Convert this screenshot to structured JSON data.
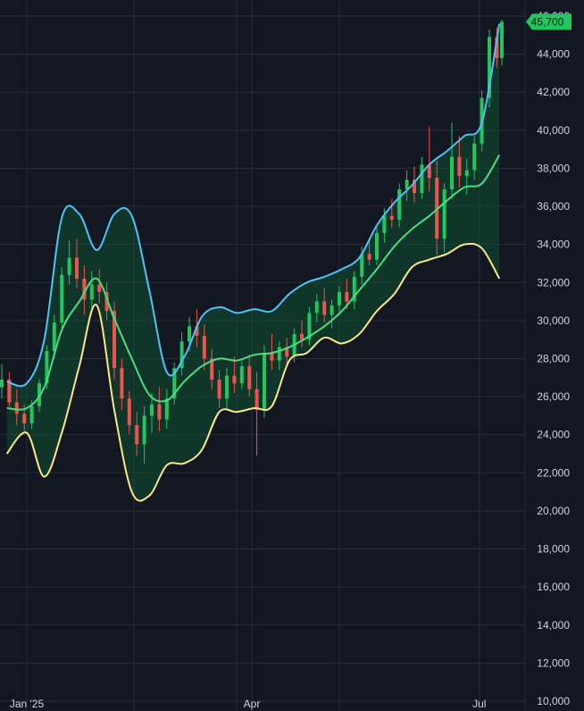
{
  "colors": {
    "background": "#131722",
    "grid": "#2a2e39",
    "up_candle": "#22c55e",
    "down_candle": "#ef5350",
    "upper_band": "#4fc3f7",
    "middle_band": "#4ade80",
    "lower_band": "#fde68a",
    "band_fill": "#0f5132",
    "price_badge": "#22c55e"
  },
  "chart_data": {
    "type": "line",
    "title": "",
    "xlabel": "",
    "ylabel": "",
    "grid": true,
    "ylim": [
      10000,
      46000
    ],
    "y_ticks": [
      "46,000",
      "44,000",
      "42,000",
      "40,000",
      "38,000",
      "36,000",
      "34,000",
      "32,000",
      "30,000",
      "28,000",
      "26,000",
      "24,000",
      "22,000",
      "20,000",
      "18,000",
      "16,000",
      "14,000",
      "12,000",
      "10,000"
    ],
    "x_ticks": [
      "Jan '25",
      "Apr",
      "Jul"
    ],
    "current_price_label": "45,700",
    "current_price": 45700,
    "series": [
      {
        "x": [
          "Dec 24",
          "Jan 1",
          "Jan 8",
          "Jan 15",
          "Jan 22",
          "Jan 29",
          "Feb 5",
          "Feb 12",
          "Feb 19",
          "Feb 26",
          "Mar 5",
          "Mar 12",
          "Mar 19",
          "Mar 26",
          "Apr 2",
          "Apr 9",
          "Apr 16",
          "Apr 23",
          "Apr 30",
          "May 7",
          "May 14",
          "May 21",
          "May 28",
          "Jun 4",
          "Jun 11",
          "Jun 18",
          "Jun 25",
          "Jul 2",
          "Jul 9"
        ],
        "values": [
          26800,
          26700,
          29000,
          35400,
          35600,
          33700,
          35600,
          35500,
          31600,
          27300,
          28100,
          30200,
          30700,
          30400,
          30600,
          30500,
          31400,
          32000,
          32300,
          32700,
          33300,
          35000,
          36200,
          37100,
          38200,
          38900,
          39700,
          40400,
          45600
        ]
      },
      {
        "x": [
          "Dec 24",
          "Jan 1",
          "Jan 8",
          "Jan 15",
          "Jan 22",
          "Jan 29",
          "Feb 5",
          "Feb 12",
          "Feb 19",
          "Feb 26",
          "Mar 5",
          "Mar 12",
          "Mar 19",
          "Mar 26",
          "Apr 2",
          "Apr 9",
          "Apr 16",
          "Apr 23",
          "Apr 30",
          "May 7",
          "May 14",
          "May 21",
          "May 28",
          "Jun 4",
          "Jun 11",
          "Jun 18",
          "Jun 25",
          "Jul 2",
          "Jul 9"
        ],
        "values": [
          25400,
          25400,
          26500,
          29500,
          31000,
          32200,
          30100,
          28000,
          26100,
          25800,
          26800,
          27600,
          28000,
          27900,
          28200,
          28300,
          28600,
          29100,
          29700,
          30500,
          31600,
          32700,
          33900,
          34800,
          35500,
          36300,
          37000,
          37200,
          38700
        ]
      },
      {
        "x": [
          "Dec 24",
          "Jan 1",
          "Jan 8",
          "Jan 15",
          "Jan 22",
          "Jan 29",
          "Feb 5",
          "Feb 12",
          "Feb 19",
          "Feb 26",
          "Mar 5",
          "Mar 12",
          "Mar 19",
          "Mar 26",
          "Apr 2",
          "Apr 9",
          "Apr 16",
          "Apr 23",
          "Apr 30",
          "May 7",
          "May 14",
          "May 21",
          "May 28",
          "Jun 4",
          "Jun 11",
          "Jun 18",
          "Jun 25",
          "Jul 2",
          "Jul 9"
        ],
        "values": [
          23000,
          24100,
          21800,
          24100,
          27600,
          30800,
          25300,
          21000,
          20800,
          22400,
          22500,
          23200,
          25200,
          25200,
          25400,
          25500,
          27900,
          28300,
          29100,
          28800,
          29300,
          30500,
          31400,
          32800,
          33200,
          33500,
          34000,
          33800,
          32200
        ]
      }
    ],
    "candles": [
      {
        "d": "Dec 22",
        "o": 26500,
        "h": 27700,
        "l": 25900,
        "c": 26900
      },
      {
        "d": "Dec 25",
        "o": 26900,
        "h": 27300,
        "l": 25500,
        "c": 25700
      },
      {
        "d": "Dec 28",
        "o": 25700,
        "h": 26400,
        "l": 24500,
        "c": 25100
      },
      {
        "d": "Dec 31",
        "o": 25100,
        "h": 25600,
        "l": 24100,
        "c": 24600
      },
      {
        "d": "Jan 3",
        "o": 24600,
        "h": 25800,
        "l": 24300,
        "c": 25500
      },
      {
        "d": "Jan 6",
        "o": 25500,
        "h": 26900,
        "l": 25200,
        "c": 26700
      },
      {
        "d": "Jan 9",
        "o": 26700,
        "h": 28700,
        "l": 26400,
        "c": 28400
      },
      {
        "d": "Jan 12",
        "o": 28400,
        "h": 30300,
        "l": 28000,
        "c": 29900
      },
      {
        "d": "Jan 15",
        "o": 29900,
        "h": 32800,
        "l": 29500,
        "c": 32400
      },
      {
        "d": "Jan 18",
        "o": 32400,
        "h": 34200,
        "l": 31900,
        "c": 33300
      },
      {
        "d": "Jan 21",
        "o": 33300,
        "h": 34300,
        "l": 31700,
        "c": 32200
      },
      {
        "d": "Jan 24",
        "o": 32200,
        "h": 32900,
        "l": 30300,
        "c": 31100
      },
      {
        "d": "Jan 27",
        "o": 31100,
        "h": 32600,
        "l": 30600,
        "c": 31900
      },
      {
        "d": "Jan 30",
        "o": 31900,
        "h": 32700,
        "l": 30900,
        "c": 31500
      },
      {
        "d": "Feb 2",
        "o": 31500,
        "h": 32000,
        "l": 30000,
        "c": 30500
      },
      {
        "d": "Feb 5",
        "o": 30500,
        "h": 31000,
        "l": 26900,
        "c": 27500
      },
      {
        "d": "Feb 8",
        "o": 27500,
        "h": 28000,
        "l": 25300,
        "c": 25900
      },
      {
        "d": "Feb 11",
        "o": 25900,
        "h": 26300,
        "l": 24000,
        "c": 24500
      },
      {
        "d": "Feb 14",
        "o": 24500,
        "h": 25200,
        "l": 22900,
        "c": 23500
      },
      {
        "d": "Feb 17",
        "o": 23500,
        "h": 25500,
        "l": 22500,
        "c": 25000
      },
      {
        "d": "Feb 20",
        "o": 25000,
        "h": 26200,
        "l": 24100,
        "c": 25600
      },
      {
        "d": "Feb 23",
        "o": 25600,
        "h": 26500,
        "l": 24200,
        "c": 24800
      },
      {
        "d": "Feb 26",
        "o": 24800,
        "h": 26400,
        "l": 24300,
        "c": 25900
      },
      {
        "d": "Mar 1",
        "o": 25900,
        "h": 27800,
        "l": 25600,
        "c": 27500
      },
      {
        "d": "Mar 4",
        "o": 27500,
        "h": 29400,
        "l": 27100,
        "c": 28900
      },
      {
        "d": "Mar 7",
        "o": 28900,
        "h": 30200,
        "l": 28400,
        "c": 29700
      },
      {
        "d": "Mar 10",
        "o": 29700,
        "h": 30600,
        "l": 28600,
        "c": 29200
      },
      {
        "d": "Mar 13",
        "o": 29200,
        "h": 29800,
        "l": 27400,
        "c": 28000
      },
      {
        "d": "Mar 16",
        "o": 28000,
        "h": 28500,
        "l": 26400,
        "c": 26900
      },
      {
        "d": "Mar 19",
        "o": 26900,
        "h": 27400,
        "l": 25400,
        "c": 25900
      },
      {
        "d": "Mar 22",
        "o": 25900,
        "h": 27500,
        "l": 25400,
        "c": 27100
      },
      {
        "d": "Mar 25",
        "o": 27100,
        "h": 28100,
        "l": 26200,
        "c": 26700
      },
      {
        "d": "Mar 28",
        "o": 26700,
        "h": 27900,
        "l": 26400,
        "c": 27600
      },
      {
        "d": "Mar 31",
        "o": 27600,
        "h": 28200,
        "l": 26000,
        "c": 26400
      },
      {
        "d": "Apr 3",
        "o": 26400,
        "h": 27300,
        "l": 22900,
        "c": 25300
      },
      {
        "d": "Apr 6",
        "o": 25300,
        "h": 28700,
        "l": 24900,
        "c": 28300
      },
      {
        "d": "Apr 9",
        "o": 28300,
        "h": 29300,
        "l": 27400,
        "c": 27900
      },
      {
        "d": "Apr 12",
        "o": 27900,
        "h": 28900,
        "l": 27400,
        "c": 28600
      },
      {
        "d": "Apr 15",
        "o": 28600,
        "h": 29100,
        "l": 27600,
        "c": 28100
      },
      {
        "d": "Apr 18",
        "o": 28100,
        "h": 29600,
        "l": 27800,
        "c": 29300
      },
      {
        "d": "Apr 21",
        "o": 29300,
        "h": 30000,
        "l": 28600,
        "c": 29000
      },
      {
        "d": "Apr 24",
        "o": 29000,
        "h": 30700,
        "l": 28700,
        "c": 30400
      },
      {
        "d": "Apr 27",
        "o": 30400,
        "h": 31400,
        "l": 29900,
        "c": 31000
      },
      {
        "d": "Apr 30",
        "o": 31000,
        "h": 31700,
        "l": 29900,
        "c": 30300
      },
      {
        "d": "May 3",
        "o": 30300,
        "h": 31100,
        "l": 29600,
        "c": 30800
      },
      {
        "d": "May 6",
        "o": 30800,
        "h": 31800,
        "l": 30300,
        "c": 31500
      },
      {
        "d": "May 9",
        "o": 31500,
        "h": 32200,
        "l": 30600,
        "c": 31000
      },
      {
        "d": "May 12",
        "o": 31000,
        "h": 32600,
        "l": 30600,
        "c": 32300
      },
      {
        "d": "May 15",
        "o": 32300,
        "h": 33900,
        "l": 31900,
        "c": 33500
      },
      {
        "d": "May 18",
        "o": 33500,
        "h": 34300,
        "l": 32900,
        "c": 33200
      },
      {
        "d": "May 21",
        "o": 33200,
        "h": 34900,
        "l": 32900,
        "c": 34600
      },
      {
        "d": "May 24",
        "o": 34600,
        "h": 35900,
        "l": 34100,
        "c": 35500
      },
      {
        "d": "May 27",
        "o": 35500,
        "h": 36400,
        "l": 34900,
        "c": 35300
      },
      {
        "d": "May 30",
        "o": 35300,
        "h": 37200,
        "l": 34900,
        "c": 36900
      },
      {
        "d": "Jun 2",
        "o": 36900,
        "h": 37900,
        "l": 36300,
        "c": 37400
      },
      {
        "d": "Jun 5",
        "o": 37400,
        "h": 38100,
        "l": 36200,
        "c": 36700
      },
      {
        "d": "Jun 8",
        "o": 36700,
        "h": 38600,
        "l": 36400,
        "c": 38200
      },
      {
        "d": "Jun 11",
        "o": 38200,
        "h": 40200,
        "l": 36800,
        "c": 37500
      },
      {
        "d": "Jun 14",
        "o": 37500,
        "h": 38400,
        "l": 33400,
        "c": 34300
      },
      {
        "d": "Jun 17",
        "o": 34300,
        "h": 37200,
        "l": 33600,
        "c": 36900
      },
      {
        "d": "Jun 20",
        "o": 36900,
        "h": 40400,
        "l": 36400,
        "c": 38600
      },
      {
        "d": "Jun 23",
        "o": 38600,
        "h": 39700,
        "l": 37000,
        "c": 37600
      },
      {
        "d": "Jun 26",
        "o": 37600,
        "h": 38500,
        "l": 36600,
        "c": 37900
      },
      {
        "d": "Jun 29",
        "o": 37900,
        "h": 39700,
        "l": 37400,
        "c": 39300
      },
      {
        "d": "Jul 2",
        "o": 39300,
        "h": 42100,
        "l": 38900,
        "c": 41700
      },
      {
        "d": "Jul 5",
        "o": 41700,
        "h": 45300,
        "l": 41200,
        "c": 44900
      },
      {
        "d": "Jul 8",
        "o": 44900,
        "h": 45400,
        "l": 43300,
        "c": 43800
      },
      {
        "d": "Jul 10",
        "o": 43800,
        "h": 45800,
        "l": 43400,
        "c": 45700
      }
    ]
  }
}
